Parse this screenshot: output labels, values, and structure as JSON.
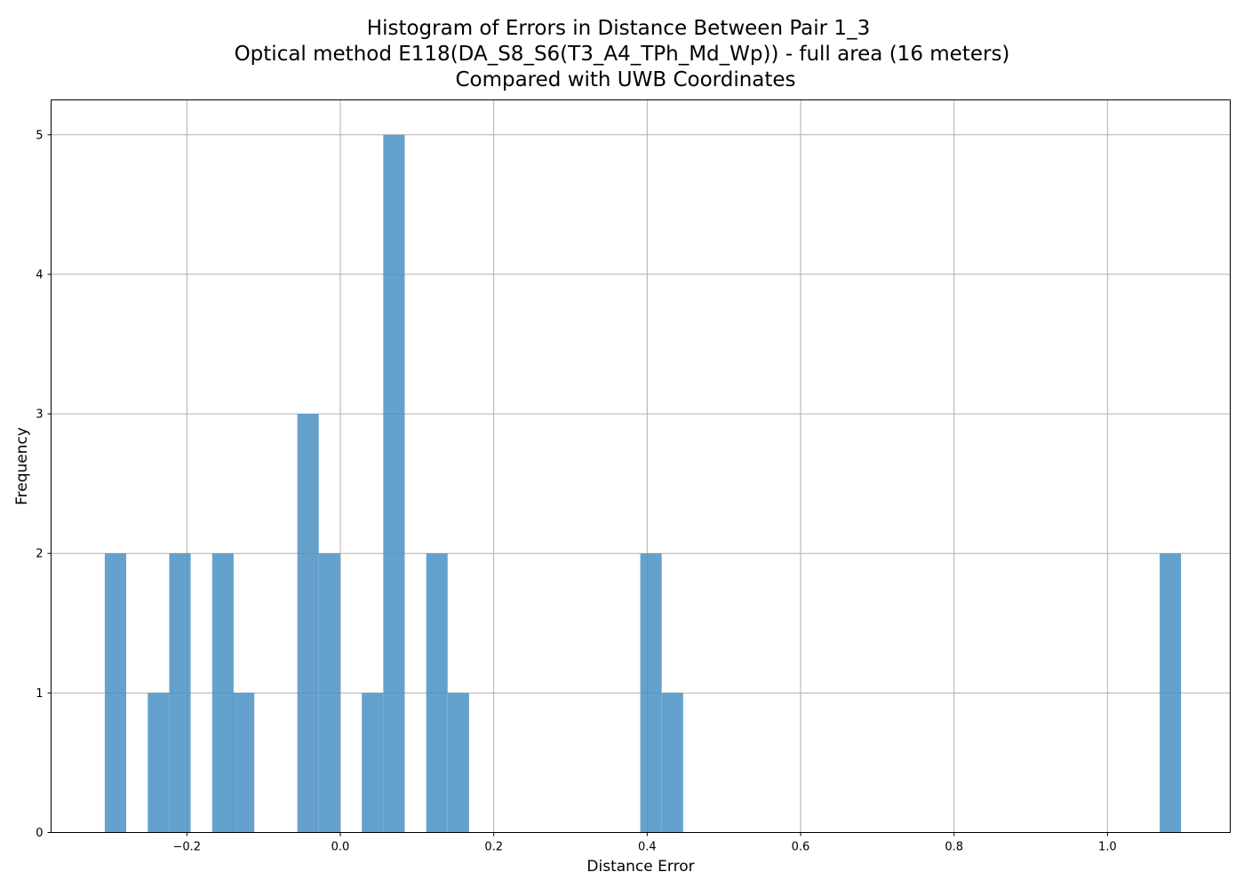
{
  "chart_data": {
    "type": "bar",
    "title_lines": [
      "Histogram of Errors in Distance Between Pair 1_3",
      "Optical method E118(DA_S8_S6(T3_A4_TPh_Md_Wp)) - full area (16 meters)",
      "Compared with UWB Coordinates"
    ],
    "xlabel": "Distance Error",
    "ylabel": "Frequency",
    "xlim": [
      -0.377,
      1.16
    ],
    "ylim": [
      0,
      5.25
    ],
    "xticks": [
      -0.2,
      0.0,
      0.2,
      0.4,
      0.6,
      0.8,
      1.0
    ],
    "xtick_labels": [
      "−0.2",
      "0.0",
      "0.2",
      "0.4",
      "0.6",
      "0.8",
      "1.0"
    ],
    "yticks": [
      0,
      1,
      2,
      3,
      4,
      5
    ],
    "ytick_labels": [
      "0",
      "1",
      "2",
      "3",
      "4",
      "5"
    ],
    "grid": true,
    "bar_color": "#4a90c4",
    "bar_alpha": 0.85,
    "bin_width": 0.0279,
    "bins": [
      {
        "x0": -0.307,
        "count": 2
      },
      {
        "x0": -0.251,
        "count": 1
      },
      {
        "x0": -0.223,
        "count": 2
      },
      {
        "x0": -0.167,
        "count": 2
      },
      {
        "x0": -0.14,
        "count": 1
      },
      {
        "x0": -0.056,
        "count": 3
      },
      {
        "x0": -0.028,
        "count": 2
      },
      {
        "x0": 0.028,
        "count": 1
      },
      {
        "x0": 0.056,
        "count": 5
      },
      {
        "x0": 0.112,
        "count": 2
      },
      {
        "x0": 0.14,
        "count": 1
      },
      {
        "x0": 0.391,
        "count": 2
      },
      {
        "x0": 0.419,
        "count": 1
      },
      {
        "x0": 1.068,
        "count": 2
      }
    ]
  }
}
